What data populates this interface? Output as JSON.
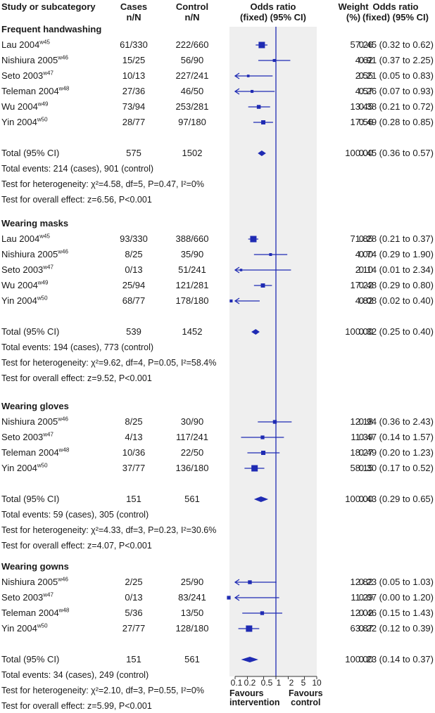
{
  "header": {
    "study_col": "Study or subcategory",
    "cases_col": [
      "Cases",
      "n/N"
    ],
    "control_col": [
      "Control",
      "n/N"
    ],
    "plot_col": [
      "Odds ratio",
      "(fixed) (95% CI)"
    ],
    "weight_col": [
      "Weight",
      "(%)"
    ],
    "or_col": [
      "Odds ratio",
      "(fixed) (95% CI)"
    ]
  },
  "sections": [
    {
      "title": "Frequent handwashing",
      "studies": [
        {
          "name": "Lau 2004",
          "ref": "w45",
          "cases": "61/330",
          "control": "222/660",
          "weight": "57.26",
          "or_text": "0.45 (0.32 to 0.62)",
          "or": 0.45,
          "lo": 0.32,
          "hi": 0.62
        },
        {
          "name": "Nishiura 2005",
          "ref": "w46",
          "cases": "15/25",
          "control": "56/90",
          "weight": "4.62",
          "or_text": "0.91 (0.37 to 2.25)",
          "or": 0.91,
          "lo": 0.37,
          "hi": 2.25
        },
        {
          "name": "Seto 2003",
          "ref": "w47",
          "cases": "10/13",
          "control": "227/241",
          "weight": "2.55",
          "or_text": "0.21 (0.05 to 0.83)",
          "or": 0.21,
          "lo": 0.05,
          "hi": 0.83
        },
        {
          "name": "Teleman 2004",
          "ref": "w48",
          "cases": "27/36",
          "control": "46/50",
          "weight": "4.57",
          "or_text": "0.26 (0.07 to 0.93)",
          "or": 0.26,
          "lo": 0.07,
          "hi": 0.93
        },
        {
          "name": "Wu 2004",
          "ref": "w49",
          "cases": "73/94",
          "control": "253/281",
          "weight": "13.45",
          "or_text": "0.38 (0.21 to 0.72)",
          "or": 0.38,
          "lo": 0.21,
          "hi": 0.72
        },
        {
          "name": "Yin 2004",
          "ref": "w50",
          "cases": "28/77",
          "control": "97/180",
          "weight": "17.56",
          "or_text": "0.49 (0.28 to 0.85)",
          "or": 0.49,
          "lo": 0.28,
          "hi": 0.85
        }
      ],
      "total": {
        "label": "Total (95% CI)",
        "cases": "575",
        "control": "1502",
        "weight": "100.00",
        "or_text": "0.45 (0.36 to 0.57)",
        "or": 0.45,
        "lo": 0.36,
        "hi": 0.57
      },
      "events": "Total events: 214 (cases), 901 (control)",
      "heterogeneity": "Test for heterogeneity: χ²=4.58, df=5, P=0.47, I²=0%",
      "overall": "Test for overall effect: z=6.56, P<0.001"
    },
    {
      "title": "Wearing masks",
      "studies": [
        {
          "name": "Lau 2004",
          "ref": "w45",
          "cases": "93/330",
          "control": "388/660",
          "weight": "71.85",
          "or_text": "0.28 (0.21 to 0.37)",
          "or": 0.28,
          "lo": 0.21,
          "hi": 0.37
        },
        {
          "name": "Nishiura 2005",
          "ref": "w46",
          "cases": "8/25",
          "control": "35/90",
          "weight": "4.00",
          "or_text": "0.74 (0.29 to 1.90)",
          "or": 0.74,
          "lo": 0.29,
          "hi": 1.9
        },
        {
          "name": "Seto 2003",
          "ref": "w47",
          "cases": "0/13",
          "control": "51/241",
          "weight": "2.10",
          "or_text": "0.14 (0.01 to 2.34)",
          "or": 0.14,
          "lo": 0.01,
          "hi": 2.34
        },
        {
          "name": "Wu 2004",
          "ref": "w49",
          "cases": "25/94",
          "control": "121/281",
          "weight": "17.22",
          "or_text": "0.48 (0.29 to 0.80)",
          "or": 0.48,
          "lo": 0.29,
          "hi": 0.8
        },
        {
          "name": "Yin 2004",
          "ref": "w50",
          "cases": "68/77",
          "control": "178/180",
          "weight": "4.82",
          "or_text": "0.08 (0.02 to 0.40)",
          "or": 0.08,
          "lo": 0.02,
          "hi": 0.4
        }
      ],
      "total": {
        "label": "Total (95% CI)",
        "cases": "539",
        "control": "1452",
        "weight": "100.00",
        "or_text": "0.32 (0.25 to 0.40)",
        "or": 0.32,
        "lo": 0.25,
        "hi": 0.4
      },
      "events": "Total events: 194 (cases), 773 (control)",
      "heterogeneity": "Test for heterogeneity: χ²=9.62, df=4, P=0.05, I²=58.4%",
      "overall": "Test for overall effect: z=9.52, P<0.001"
    },
    {
      "title": "Wearing gloves",
      "studies": [
        {
          "name": "Nishiura 2005",
          "ref": "w46",
          "cases": "8/25",
          "control": "30/90",
          "weight": "12.18",
          "or_text": "0.94 (0.36 to 2.43)",
          "or": 0.94,
          "lo": 0.36,
          "hi": 2.43
        },
        {
          "name": "Seto 2003",
          "ref": "w47",
          "cases": "4/13",
          "control": "117/241",
          "weight": "11.39",
          "or_text": "0.47 (0.14 to 1.57)",
          "or": 0.47,
          "lo": 0.14,
          "hi": 1.57
        },
        {
          "name": "Teleman 2004",
          "ref": "w48",
          "cases": "10/36",
          "control": "22/50",
          "weight": "18.27",
          "or_text": "0.49 (0.20 to 1.23)",
          "or": 0.49,
          "lo": 0.2,
          "hi": 1.23
        },
        {
          "name": "Yin 2004",
          "ref": "w50",
          "cases": "37/77",
          "control": "136/180",
          "weight": "58.15",
          "or_text": "0.30 (0.17 to 0.52)",
          "or": 0.3,
          "lo": 0.17,
          "hi": 0.52
        }
      ],
      "total": {
        "label": "Total (95% CI)",
        "cases": "151",
        "control": "561",
        "weight": "100.00",
        "or_text": "0.43 (0.29 to 0.65)",
        "or": 0.43,
        "lo": 0.29,
        "hi": 0.65
      },
      "events": "Total events: 59 (cases), 305 (control)",
      "heterogeneity": "Test for heterogeneity: χ²=4.33, df=3, P=0.23, I²=30.6%",
      "overall": "Test for overall effect: z=4.07, P<0.001"
    },
    {
      "title": "Wearing gowns",
      "studies": [
        {
          "name": "Nishiura 2005",
          "ref": "w46",
          "cases": "2/25",
          "control": "25/90",
          "weight": "12.82",
          "or_text": "0.23 (0.05 to 1.03)",
          "or": 0.23,
          "lo": 0.05,
          "hi": 1.03
        },
        {
          "name": "Seto 2003",
          "ref": "w47",
          "cases": "0/13",
          "control": "83/241",
          "weight": "11.29",
          "or_text": "0.07 (0.00 to 1.20)",
          "or": 0.07,
          "lo": 0.0,
          "hi": 1.2
        },
        {
          "name": "Teleman 2004",
          "ref": "w48",
          "cases": "5/36",
          "control": "13/50",
          "weight": "12.02",
          "or_text": "0.46 (0.15 to 1.43)",
          "or": 0.46,
          "lo": 0.15,
          "hi": 1.43
        },
        {
          "name": "Yin 2004",
          "ref": "w50",
          "cases": "27/77",
          "control": "128/180",
          "weight": "63.87",
          "or_text": "0.22 (0.12 to 0.39)",
          "or": 0.22,
          "lo": 0.12,
          "hi": 0.39
        }
      ],
      "total": {
        "label": "Total (95% CI)",
        "cases": "151",
        "control": "561",
        "weight": "100.00",
        "or_text": "0.23 (0.14 to 0.37)",
        "or": 0.23,
        "lo": 0.14,
        "hi": 0.37
      },
      "events": "Total events: 34 (cases), 249 (control)",
      "heterogeneity": "Test for heterogeneity: χ²=2.10, df=3, P=0.55, I²=0%",
      "overall": "Test for overall effect: z=5.99, P<0.001"
    }
  ],
  "axis": {
    "ticks": [
      0.1,
      0.2,
      0.5,
      1,
      2,
      5,
      10
    ],
    "tick_labels": [
      "0.1",
      "0.2",
      "0.5",
      "1",
      "2",
      "5",
      "10"
    ],
    "favours_left": [
      "Favours",
      "intervention"
    ],
    "favours_right": [
      "Favours",
      "control"
    ]
  },
  "colors": {
    "marker": "#1f2bb3",
    "panel": "#efefef",
    "text": "#1a1a1a"
  },
  "chart_data": {
    "type": "forest",
    "scale": "log",
    "xlim": [
      0.1,
      10
    ],
    "reference_line": 1,
    "series": [
      {
        "name": "Frequent handwashing",
        "labels": [
          "Lau 2004",
          "Nishiura 2005",
          "Seto 2003",
          "Teleman 2004",
          "Wu 2004",
          "Yin 2004",
          "Total (95% CI)"
        ],
        "or": [
          0.45,
          0.91,
          0.21,
          0.26,
          0.38,
          0.49,
          0.45
        ],
        "ci_low": [
          0.32,
          0.37,
          0.05,
          0.07,
          0.21,
          0.28,
          0.36
        ],
        "ci_high": [
          0.62,
          2.25,
          0.83,
          0.93,
          0.72,
          0.85,
          0.57
        ]
      },
      {
        "name": "Wearing masks",
        "labels": [
          "Lau 2004",
          "Nishiura 2005",
          "Seto 2003",
          "Wu 2004",
          "Yin 2004",
          "Total (95% CI)"
        ],
        "or": [
          0.28,
          0.74,
          0.14,
          0.48,
          0.08,
          0.32
        ],
        "ci_low": [
          0.21,
          0.29,
          0.01,
          0.29,
          0.02,
          0.25
        ],
        "ci_high": [
          0.37,
          1.9,
          2.34,
          0.8,
          0.4,
          0.4
        ]
      },
      {
        "name": "Wearing gloves",
        "labels": [
          "Nishiura 2005",
          "Seto 2003",
          "Teleman 2004",
          "Yin 2004",
          "Total (95% CI)"
        ],
        "or": [
          0.94,
          0.47,
          0.49,
          0.3,
          0.43
        ],
        "ci_low": [
          0.36,
          0.14,
          0.2,
          0.17,
          0.29
        ],
        "ci_high": [
          2.43,
          1.57,
          1.23,
          0.52,
          0.65
        ]
      },
      {
        "name": "Wearing gowns",
        "labels": [
          "Nishiura 2005",
          "Seto 2003",
          "Teleman 2004",
          "Yin 2004",
          "Total (95% CI)"
        ],
        "or": [
          0.23,
          0.07,
          0.46,
          0.22,
          0.23
        ],
        "ci_low": [
          0.05,
          0.0,
          0.15,
          0.12,
          0.14
        ],
        "ci_high": [
          1.03,
          1.2,
          1.43,
          0.39,
          0.37
        ]
      }
    ]
  }
}
